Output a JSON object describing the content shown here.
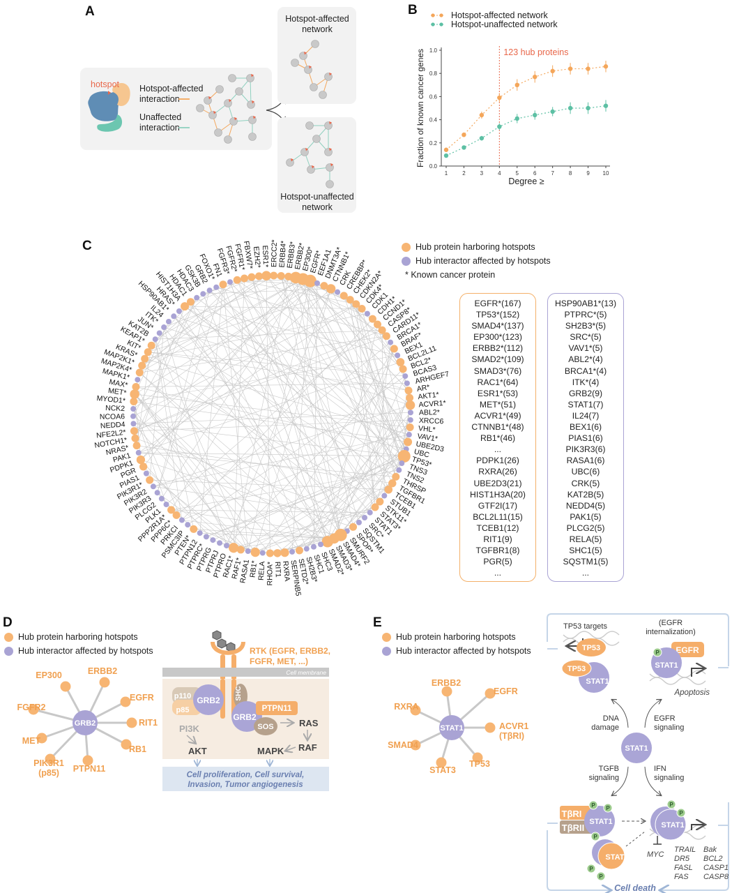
{
  "colors": {
    "hub": "#f7b573",
    "interactor": "#a9a3d4",
    "affected": "#f4a65a",
    "unaffected": "#5dc0a4",
    "hotspot": "#e8674a",
    "gray_node": "#c9c9c9",
    "pathway_text": "#6a7fb0"
  },
  "panel_a": {
    "label": "A",
    "hotspot": "hotspot",
    "affected_line1": "Hotspot-affected",
    "affected_line2": "interaction",
    "unaffected_line1": "Unaffected",
    "unaffected_line2": "interaction",
    "box1_line1": "Hotspot-affected",
    "box1_line2": "network",
    "box2_line1": "Hotspot-unaffected",
    "box2_line2": "network"
  },
  "panel_b": {
    "label": "B"
  },
  "chart_data": {
    "type": "line",
    "x": [
      1,
      2,
      3,
      4,
      5,
      6,
      7,
      8,
      9,
      10
    ],
    "xticks": [
      "1",
      "2",
      "3",
      "4",
      "5",
      "6",
      "7",
      "8",
      "9",
      "10"
    ],
    "yticks": [
      "0.0",
      "0.2",
      "0.4",
      "0.6",
      "0.8",
      "1.0"
    ],
    "xlabel": "Degree ≥",
    "ylabel": "Fraction of known cancer genes",
    "ylim": [
      0,
      1
    ],
    "annotation": {
      "x": 4,
      "text": "123 hub proteins"
    },
    "legend": "top-left",
    "series": [
      {
        "name": "Hotspot-affected network",
        "color": "#f4a65a",
        "values": [
          0.14,
          0.27,
          0.44,
          0.59,
          0.7,
          0.77,
          0.82,
          0.84,
          0.84,
          0.86
        ],
        "err": [
          0.01,
          0.02,
          0.03,
          0.04,
          0.05,
          0.05,
          0.05,
          0.05,
          0.05,
          0.05
        ]
      },
      {
        "name": "Hotspot-unaffected network",
        "color": "#5dc0a4",
        "values": [
          0.09,
          0.16,
          0.24,
          0.34,
          0.41,
          0.44,
          0.47,
          0.5,
          0.5,
          0.52
        ],
        "err": [
          0.01,
          0.01,
          0.02,
          0.03,
          0.04,
          0.04,
          0.04,
          0.05,
          0.05,
          0.05
        ]
      }
    ]
  },
  "panel_c": {
    "label": "C",
    "legend": {
      "hub": "Hub protein harboring hotspots",
      "interactor": "Hub interactor affected by hotspots",
      "known": "* Known cancer protein"
    },
    "nodes": [
      {
        "n": "HSP90AB1*",
        "t": "i"
      },
      {
        "n": "HRAS*",
        "t": "i"
      },
      {
        "n": "HIST1H3A",
        "t": "h"
      },
      {
        "n": "HDAC1",
        "t": "h"
      },
      {
        "n": "HDAC3",
        "t": "i"
      },
      {
        "n": "GSK3B",
        "t": "i"
      },
      {
        "n": "GRB2",
        "t": "i"
      },
      {
        "n": "FOXO1*",
        "t": "i"
      },
      {
        "n": "FN1",
        "t": "h"
      },
      {
        "n": "FGFR3*",
        "t": "i"
      },
      {
        "n": "FGFR2*",
        "t": "h"
      },
      {
        "n": "FGFR1*",
        "t": "h"
      },
      {
        "n": "FBXW7*",
        "t": "h"
      },
      {
        "n": "EZH2*",
        "t": "h"
      },
      {
        "n": "ESR1*",
        "t": "h"
      },
      {
        "n": "ERCC2*",
        "t": "h"
      },
      {
        "n": "ERBB4*",
        "t": "h"
      },
      {
        "n": "ERBB3*",
        "t": "h"
      },
      {
        "n": "ERBB2*",
        "t": "h"
      },
      {
        "n": "EP300*",
        "t": "h"
      },
      {
        "n": "EGFR*",
        "t": "h"
      },
      {
        "n": "EEF1A1",
        "t": "i"
      },
      {
        "n": "DNMT3A*",
        "t": "h"
      },
      {
        "n": "CTNNB1*",
        "t": "h"
      },
      {
        "n": "CRK",
        "t": "i"
      },
      {
        "n": "CREBBP*",
        "t": "h"
      },
      {
        "n": "CHEK2*",
        "t": "h"
      },
      {
        "n": "CDKN2A*",
        "t": "h"
      },
      {
        "n": "CDK4*",
        "t": "h"
      },
      {
        "n": "CDK1",
        "t": "i"
      },
      {
        "n": "CDH1*",
        "t": "h"
      },
      {
        "n": "CCND1*",
        "t": "h"
      },
      {
        "n": "CASP8*",
        "t": "h"
      },
      {
        "n": "CARD11*",
        "t": "h"
      },
      {
        "n": "BRCA1*",
        "t": "i"
      },
      {
        "n": "BRAF*",
        "t": "h"
      },
      {
        "n": "BEX1",
        "t": "i"
      },
      {
        "n": "BCL2L11",
        "t": "h"
      },
      {
        "n": "BCL2*",
        "t": "h"
      },
      {
        "n": "BCAS3",
        "t": "i"
      },
      {
        "n": "ARHGEF7",
        "t": "i"
      },
      {
        "n": "AR*",
        "t": "h"
      },
      {
        "n": "AKT1*",
        "t": "h"
      },
      {
        "n": "ACVR1*",
        "t": "h"
      },
      {
        "n": "ABL2*",
        "t": "i"
      },
      {
        "n": "XRCC6",
        "t": "i"
      },
      {
        "n": "VHL*",
        "t": "h"
      },
      {
        "n": "VAV1*",
        "t": "i"
      },
      {
        "n": "UBE2D3",
        "t": "h"
      },
      {
        "n": "UBC",
        "t": "i"
      },
      {
        "n": "TP53*",
        "t": "h"
      },
      {
        "n": "TNS3",
        "t": "i"
      },
      {
        "n": "TNS2",
        "t": "i"
      },
      {
        "n": "THRSP",
        "t": "h"
      },
      {
        "n": "TGFBR1",
        "t": "h"
      },
      {
        "n": "TCEB1",
        "t": "h"
      },
      {
        "n": "STUB1",
        "t": "i"
      },
      {
        "n": "STK11*",
        "t": "h"
      },
      {
        "n": "STAT3*",
        "t": "h"
      },
      {
        "n": "STAT1",
        "t": "i"
      },
      {
        "n": "SRC*",
        "t": "i"
      },
      {
        "n": "SQSTM1",
        "t": "i"
      },
      {
        "n": "SPOP*",
        "t": "h"
      },
      {
        "n": "SMURF2",
        "t": "i"
      },
      {
        "n": "SMAD4*",
        "t": "h"
      },
      {
        "n": "SMAD3*",
        "t": "h"
      },
      {
        "n": "SMAD2*",
        "t": "h"
      },
      {
        "n": "SHC3",
        "t": "i"
      },
      {
        "n": "SHC1",
        "t": "i"
      },
      {
        "n": "SH2B3*",
        "t": "i"
      },
      {
        "n": "SETD2*",
        "t": "h"
      },
      {
        "n": "SERPINB5",
        "t": "i"
      },
      {
        "n": "RXRA",
        "t": "h"
      },
      {
        "n": "RIT1",
        "t": "h"
      },
      {
        "n": "RHOA*",
        "t": "h"
      },
      {
        "n": "RELA",
        "t": "i"
      },
      {
        "n": "RB1*",
        "t": "h"
      },
      {
        "n": "RASA1",
        "t": "i"
      },
      {
        "n": "RAF1*",
        "t": "h"
      },
      {
        "n": "RAC1*",
        "t": "h"
      },
      {
        "n": "PTPRO",
        "t": "i"
      },
      {
        "n": "PTPRJ",
        "t": "i"
      },
      {
        "n": "PTPRG",
        "t": "i"
      },
      {
        "n": "PTPRC*",
        "t": "i"
      },
      {
        "n": "PTPN12",
        "t": "i"
      },
      {
        "n": "PTEN*",
        "t": "h"
      },
      {
        "n": "PSMC3IP",
        "t": "i"
      },
      {
        "n": "PRKCI",
        "t": "i"
      },
      {
        "n": "PPP6C*",
        "t": "h"
      },
      {
        "n": "PPP2R1A*",
        "t": "h"
      },
      {
        "n": "PLK1",
        "t": "i"
      },
      {
        "n": "PLCG2",
        "t": "i"
      },
      {
        "n": "PIK3R3",
        "t": "i"
      },
      {
        "n": "PIK3R2",
        "t": "i"
      },
      {
        "n": "PIK3R1*",
        "t": "h"
      },
      {
        "n": "PIAS1",
        "t": "i"
      },
      {
        "n": "PGR",
        "t": "h"
      },
      {
        "n": "PDPK1",
        "t": "h"
      },
      {
        "n": "PAK1",
        "t": "i"
      },
      {
        "n": "NRAS*",
        "t": "h"
      },
      {
        "n": "NOTCH1*",
        "t": "h"
      },
      {
        "n": "NFE2L2*",
        "t": "h"
      },
      {
        "n": "NEDD4",
        "t": "i"
      },
      {
        "n": "NCOA6",
        "t": "i"
      },
      {
        "n": "NCK2",
        "t": "i"
      },
      {
        "n": "MYOD1*",
        "t": "h"
      },
      {
        "n": "MET*",
        "t": "h"
      },
      {
        "n": "MAX*",
        "t": "h"
      },
      {
        "n": "MAPK1*",
        "t": "i"
      },
      {
        "n": "MAP2K4*",
        "t": "h"
      },
      {
        "n": "MAP2K1*",
        "t": "h"
      },
      {
        "n": "KRAS*",
        "t": "h"
      },
      {
        "n": "KIT*",
        "t": "h"
      },
      {
        "n": "KEAP1*",
        "t": "h"
      },
      {
        "n": "KAT2B",
        "t": "i"
      },
      {
        "n": "JUN*",
        "t": "i"
      },
      {
        "n": "ITK*",
        "t": "i"
      },
      {
        "n": "IL24",
        "t": "i"
      }
    ],
    "hub_list": [
      "EGFR*(167)",
      "TP53*(152)",
      "SMAD4*(137)",
      "EP300*(123)",
      "ERBB2*(112)",
      "SMAD2*(109)",
      "SMAD3*(76)",
      "RAC1*(64)",
      "ESR1*(53)",
      "MET*(51)",
      "ACVR1*(49)",
      "CTNNB1*(48)",
      "RB1*(46)",
      "...",
      "PDPK1(26)",
      "RXRA(26)",
      "UBE2D3(21)",
      "HIST1H3A(20)",
      "GTF2I(17)",
      "BCL2L11(15)",
      "TCEB1(12)",
      "RIT1(9)",
      "TGFBR1(8)",
      "PGR(5)",
      "..."
    ],
    "interactor_list": [
      "HSP90AB1*(13)",
      "PTPRC*(5)",
      "SH2B3*(5)",
      "SRC*(5)",
      "VAV1*(5)",
      "ABL2*(4)",
      "BRCA1*(4)",
      "ITK*(4)",
      "GRB2(9)",
      "STAT1(7)",
      "IL24(7)",
      "BEX1(6)",
      "PIAS1(6)",
      "PIK3R3(6)",
      "RASA1(6)",
      "UBC(6)",
      "CRK(5)",
      "KAT2B(5)",
      "NEDD4(5)",
      "PAK1(5)",
      "PLCG2(5)",
      "RELA(5)",
      "SHC1(5)",
      "SQSTM1(5)",
      "..."
    ]
  },
  "panel_d": {
    "label": "D",
    "legend": {
      "hub": "Hub protein harboring hotspots",
      "interactor": "Hub interactor affected by hotspots"
    },
    "center": "GRB2",
    "spokes": [
      "EP300",
      "ERBB2",
      "EGFR",
      "RIT1",
      "RB1",
      "PTPN11",
      "PIK3R1\n(p85)",
      "MET",
      "FGFR2"
    ],
    "pathway": {
      "rtk1": "RTK (EGFR, ERBB2,",
      "rtk2": "FGFR, MET, ...)",
      "membrane": "Cell membrane",
      "p110": "p110",
      "p85": "p85",
      "grb2": "GRB2",
      "shc": "SHC",
      "ptpn11": "PTPN11",
      "sos": "SOS",
      "pi3k": "PI3K",
      "ras": "RAS",
      "raf": "RAF",
      "akt": "AKT",
      "mapk": "MAPK",
      "outcome1": "Cell proliferation, Cell survival,",
      "outcome2": "Invasion, Tumor angiogenesis"
    }
  },
  "panel_e": {
    "label": "E",
    "legend": {
      "hub": "Hub protein harboring hotspots",
      "interactor": "Hub interactor affected by hotspots"
    },
    "center": "STAT1",
    "spokes": [
      "ERBB2",
      "EGFR",
      "ACVR1\n(TβRI)",
      "TP53",
      "STAT3",
      "SMAD4",
      "RXRA"
    ],
    "pathway": {
      "tp53_targets": "TP53 targets",
      "tp53": "TP53",
      "stat1": "STAT1",
      "egfr_int1": "(EGFR",
      "egfr_int2": "internalization)",
      "egfr": "EGFR",
      "p": "P",
      "apoptosis": "Apoptosis",
      "dna1": "DNA",
      "dna2": "damage",
      "egfrs1": "EGFR",
      "egfrs2": "signaling",
      "tgfb1": "TGFB",
      "tgfb2": "signaling",
      "ifn1": "IFN",
      "ifn2": "signaling",
      "tbri": "TβRI",
      "tbrii": "TβRII",
      "stat3": "STAT3",
      "myc": "MYC",
      "genes": [
        "TRAIL",
        "Bak",
        "DR5",
        "BCL2",
        "FASL",
        "CASP1",
        "FAS",
        "CASP8"
      ],
      "cell_death": "Cell death"
    }
  }
}
